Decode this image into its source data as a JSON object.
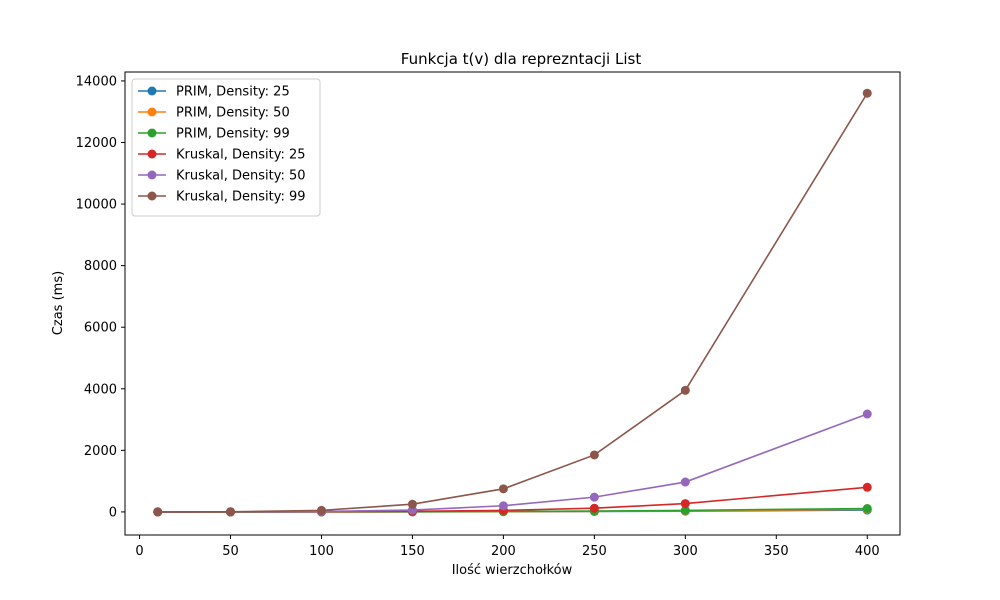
{
  "chart_data": {
    "type": "line",
    "title": "Funkcja t(v) dla repreznt­acji List",
    "xlabel": "Ilość wierzchołków",
    "ylabel": "Czas (ms)",
    "x": [
      10,
      50,
      100,
      150,
      200,
      250,
      300,
      400
    ],
    "xlim": [
      -8,
      418
    ],
    "ylim": [
      -750,
      14290
    ],
    "xticks": [
      0,
      50,
      100,
      150,
      200,
      250,
      300,
      350,
      400
    ],
    "yticks": [
      0,
      2000,
      4000,
      6000,
      8000,
      10000,
      12000,
      14000
    ],
    "grid": false,
    "legend_position": "upper-left",
    "series": [
      {
        "name": "PRIM, Density: 25",
        "color": "#1f77b4",
        "values": [
          0,
          0,
          1,
          3,
          7,
          14,
          25,
          60
        ]
      },
      {
        "name": "PRIM, Density: 50",
        "color": "#ff7f0e",
        "values": [
          0,
          0,
          1,
          4,
          10,
          20,
          35,
          85
        ]
      },
      {
        "name": "PRIM, Density: 99",
        "color": "#2ca02c",
        "values": [
          0,
          0,
          2,
          5,
          14,
          28,
          50,
          110
        ]
      },
      {
        "name": "Kruskal, Density: 25",
        "color": "#d62728",
        "values": [
          0,
          1,
          6,
          20,
          50,
          120,
          270,
          800
        ]
      },
      {
        "name": "Kruskal, Density: 50",
        "color": "#9467bd",
        "values": [
          0,
          2,
          15,
          60,
          200,
          480,
          970,
          3180
        ]
      },
      {
        "name": "Kruskal, Density: 99",
        "color": "#8c564b",
        "values": [
          0,
          5,
          50,
          250,
          750,
          1850,
          3950,
          13600
        ]
      }
    ]
  }
}
